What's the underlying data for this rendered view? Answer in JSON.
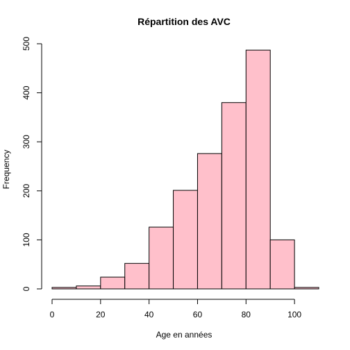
{
  "chart_data": {
    "type": "bar",
    "title": "Répartition des AVC",
    "xlabel": "Age en années",
    "ylabel": "Frequency",
    "bins": [
      {
        "start": 0,
        "end": 10,
        "count": 3
      },
      {
        "start": 10,
        "end": 20,
        "count": 6
      },
      {
        "start": 20,
        "end": 30,
        "count": 24
      },
      {
        "start": 30,
        "end": 40,
        "count": 52
      },
      {
        "start": 40,
        "end": 50,
        "count": 126
      },
      {
        "start": 50,
        "end": 60,
        "count": 201
      },
      {
        "start": 60,
        "end": 70,
        "count": 276
      },
      {
        "start": 70,
        "end": 80,
        "count": 380
      },
      {
        "start": 80,
        "end": 90,
        "count": 487
      },
      {
        "start": 90,
        "end": 100,
        "count": 100
      },
      {
        "start": 100,
        "end": 110,
        "count": 3
      }
    ],
    "x_ticks": [
      "0",
      "20",
      "40",
      "60",
      "80",
      "100"
    ],
    "y_ticks": [
      "0",
      "100",
      "200",
      "300",
      "400",
      "500"
    ],
    "xlim": [
      0,
      110
    ],
    "ylim": [
      0,
      500
    ],
    "bar_color": "#ffc0cb",
    "grid": false
  }
}
